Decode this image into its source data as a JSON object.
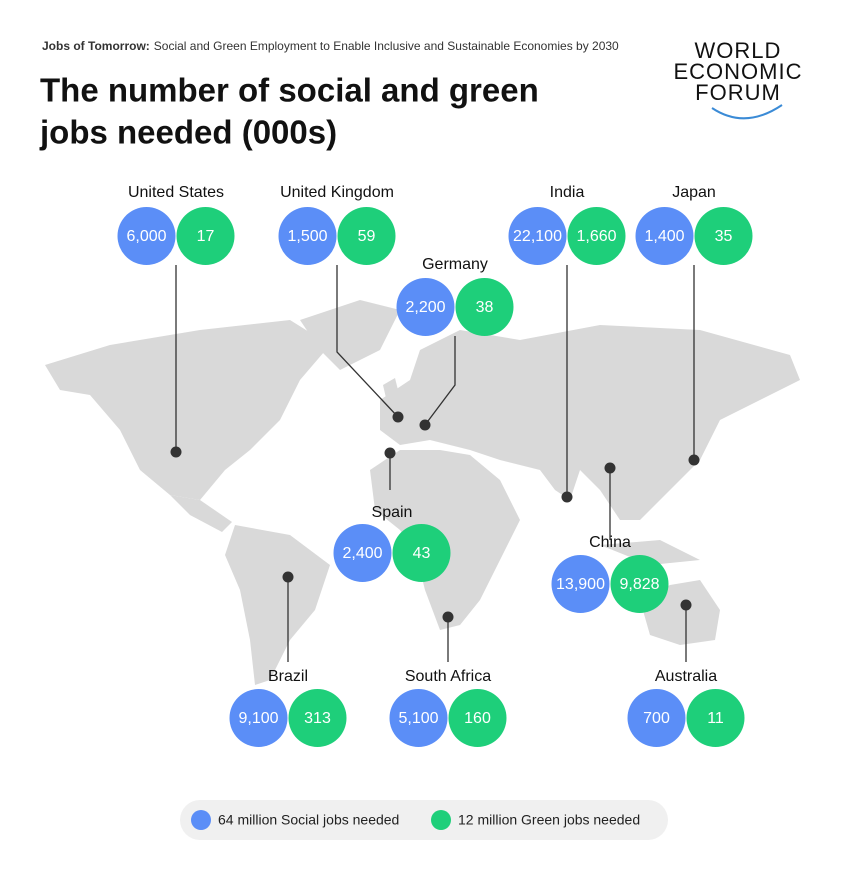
{
  "header": {
    "kicker": "Jobs of Tomorrow:",
    "subtitle": "Social and Green Employment to Enable Inclusive and Sustainable Economies by 2030",
    "title_line1": "The number of social and green",
    "title_line2": "jobs needed (000s)",
    "logo_line1": "WORLD",
    "logo_line2": "ECONOMIC",
    "logo_line3": "FORUM"
  },
  "countries": [
    {
      "name": "United States",
      "social": "6,000",
      "green": "17"
    },
    {
      "name": "United Kingdom",
      "social": "1,500",
      "green": "59"
    },
    {
      "name": "Germany",
      "social": "2,200",
      "green": "38"
    },
    {
      "name": "India",
      "social": "22,100",
      "green": "1,660"
    },
    {
      "name": "Japan",
      "social": "1,400",
      "green": "35"
    },
    {
      "name": "Spain",
      "social": "2,400",
      "green": "43"
    },
    {
      "name": "China",
      "social": "13,900",
      "green": "9,828"
    },
    {
      "name": "Brazil",
      "social": "9,100",
      "green": "313"
    },
    {
      "name": "South Africa",
      "social": "5,100",
      "green": "160"
    },
    {
      "name": "Australia",
      "social": "700",
      "green": "11"
    }
  ],
  "legend": {
    "social": "64 million Social jobs needed",
    "green": "12 million Green jobs needed"
  }
}
